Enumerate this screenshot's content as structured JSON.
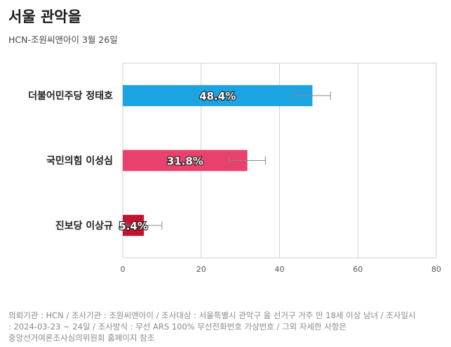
{
  "header": {
    "title": "서울 관악을",
    "subtitle": "HCN-조원씨앤아이 3월 26일"
  },
  "chart_data": {
    "type": "bar",
    "orientation": "horizontal",
    "categories": [
      "더불어민주당 정태호",
      "국민의힘 이성심",
      "진보당 이상규"
    ],
    "values": [
      48.4,
      31.8,
      5.4
    ],
    "value_labels": [
      "48.4%",
      "31.8%",
      "5.4%"
    ],
    "error_margin": [
      4.6,
      4.6,
      4.6
    ],
    "colors": [
      "#1ba3e2",
      "#e8416e",
      "#c4122f"
    ],
    "xlim": [
      0,
      80
    ],
    "xticks": [
      0,
      20,
      40,
      60,
      80
    ],
    "grid": true
  },
  "footnote": {
    "line1": "의뢰기관 : HCN / 조사기관 : 조원씨앤아이 / 조사대상 : 서울특별시 관악구 을 선거구 거주 만 18세 이상 남녀 / 조사일시",
    "line2": ": 2024-03-23 ~ 24일 / 조사방식 : 무선 ARS 100% 무선전화번호 가상번호 / 그외 자세한 사항은",
    "line3": "중앙선거여론조사심의위원회 홈페이지 참조"
  }
}
